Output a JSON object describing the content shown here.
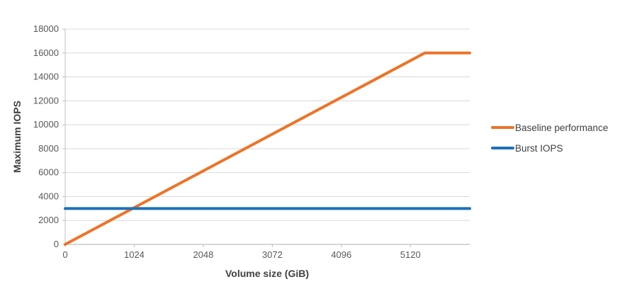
{
  "chart_data": {
    "type": "line",
    "title": "",
    "xlabel": "Volume size (GiB)",
    "ylabel": "Maximum IOPS",
    "xlim": [
      0,
      6000
    ],
    "ylim": [
      0,
      18000
    ],
    "x_ticks": [
      0,
      1024,
      2048,
      3072,
      4096,
      5120
    ],
    "y_ticks": [
      0,
      2000,
      4000,
      6000,
      8000,
      10000,
      12000,
      14000,
      16000,
      18000
    ],
    "grid": "horizontal",
    "legend_position": "right",
    "series": [
      {
        "name": "Baseline performance",
        "color": "#ED7428",
        "points": [
          [
            0,
            0
          ],
          [
            5334,
            16000
          ],
          [
            6000,
            16000
          ]
        ]
      },
      {
        "name": "Burst IOPS",
        "color": "#1F70B8",
        "points": [
          [
            0,
            3000
          ],
          [
            6000,
            3000
          ]
        ]
      }
    ]
  },
  "styles": {
    "gridline_color": "#D9D9D9",
    "axis_line_color": "#BFBFBF",
    "tick_label_color": "#595959",
    "axis_title_color": "#404040",
    "legend_text_color": "#404040"
  }
}
